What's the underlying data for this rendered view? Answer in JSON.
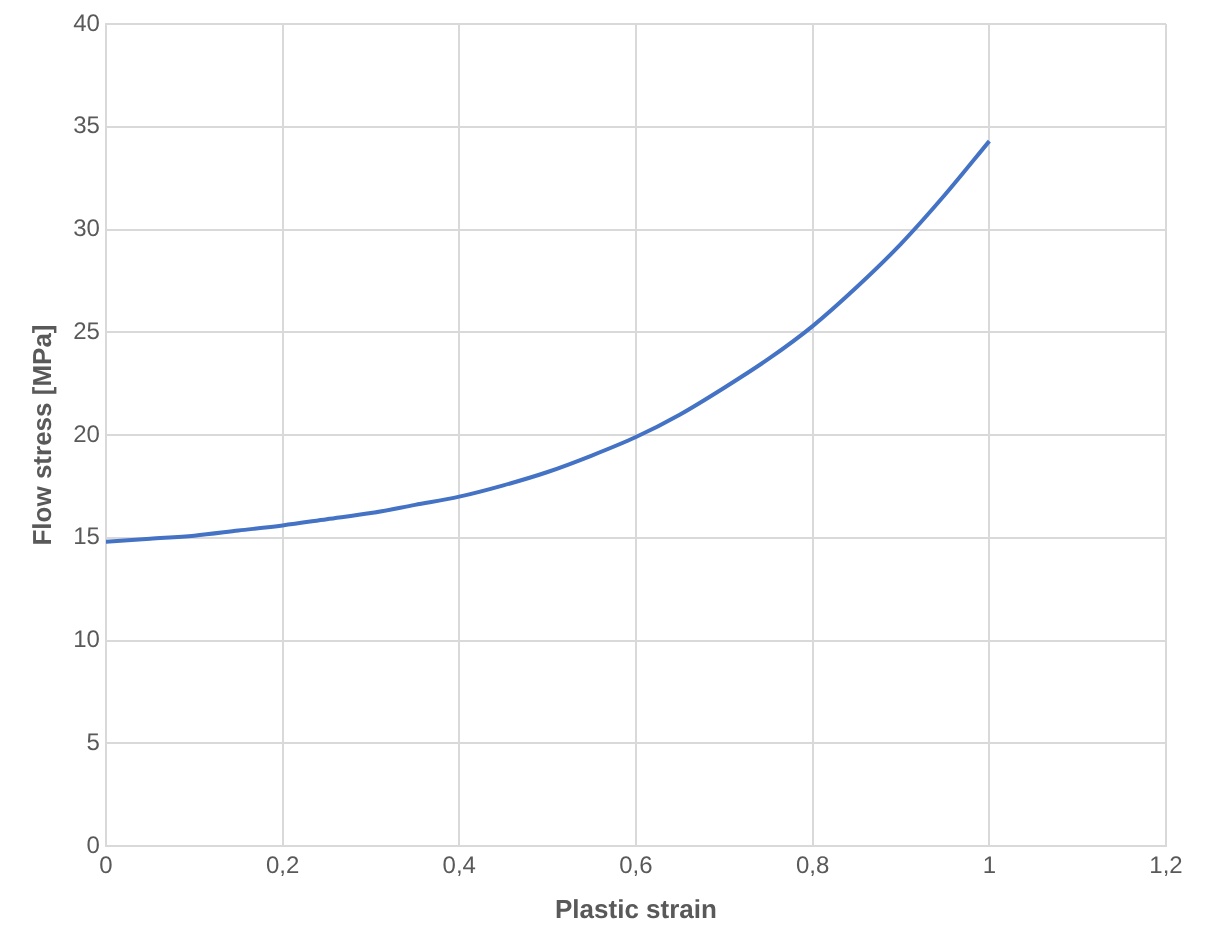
{
  "chart_data": {
    "type": "line",
    "xlabel": "Plastic strain",
    "ylabel": "Flow stress [MPa]",
    "x": [
      0,
      0.05,
      0.1,
      0.15,
      0.2,
      0.25,
      0.3,
      0.35,
      0.4,
      0.45,
      0.5,
      0.55,
      0.6,
      0.65,
      0.7,
      0.75,
      0.8,
      0.85,
      0.9,
      0.95,
      1.0
    ],
    "series": [
      {
        "color": "#4472c4",
        "values": [
          14.8,
          14.95,
          15.1,
          15.35,
          15.6,
          15.9,
          16.2,
          16.6,
          17.0,
          17.55,
          18.2,
          19.0,
          19.9,
          21.0,
          22.3,
          23.7,
          25.3,
          27.2,
          29.3,
          31.7,
          34.3
        ]
      }
    ],
    "xlim": [
      0,
      1.2
    ],
    "xticks": [
      0,
      {
        "value": 0.2,
        "label": "0,2"
      },
      {
        "value": 0.4,
        "label": "0,4"
      },
      {
        "value": 0.6,
        "label": "0,6"
      },
      {
        "value": 0.8,
        "label": "0,8"
      },
      1,
      {
        "value": 1.2,
        "label": "1,2"
      }
    ],
    "ylim": [
      0,
      40
    ],
    "yticks": [
      0,
      5,
      10,
      15,
      20,
      25,
      30,
      35,
      40
    ],
    "grid": true,
    "legend": false,
    "marker": "none",
    "line_style": "solid"
  }
}
